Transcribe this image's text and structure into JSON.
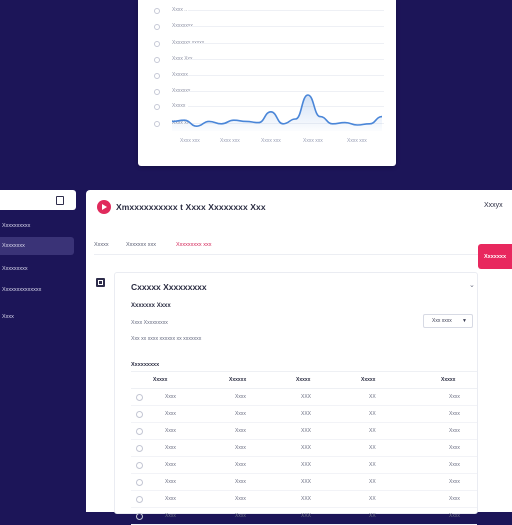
{
  "chart_card": {
    "y_labels": [
      "Xxxx ..",
      "Xxxxxxxx",
      "Xxxxxxx xxxxx",
      "Xxxx Xxx",
      "Xxxxxx",
      "Xxxxxxx",
      "Xxxxx",
      "Xxxx xx"
    ],
    "x_labels": [
      "Xxxx xxx",
      "Xxxx xxx",
      "Xxxx xxx",
      "Xxxx xxx",
      "Xxxx xxx"
    ]
  },
  "chart_data": {
    "type": "area",
    "values": [
      4,
      4.5,
      2,
      4,
      3,
      4.5,
      4,
      3.5,
      8,
      3,
      5,
      15,
      6,
      3,
      3.5,
      2.5,
      3,
      6
    ],
    "color": "#4a86d8"
  },
  "sidebar": {
    "items": [
      "Xxxxxxxxxx",
      "Xxxxxxxx",
      "Xxxxxxxxx",
      "Xxxxxxxxxxxxxx",
      "Xxxx"
    ]
  },
  "header": {
    "app_title": "Xmxxxxxxxxxx t Xxxx Xxxxxxxx Xxx",
    "user_name": "Xxxyx",
    "tabs": [
      "Xxxxx",
      "Xxxxxxx xxx",
      "Xxxxxxxxx xxx"
    ],
    "cta_label": "Xxxxxxx"
  },
  "card": {
    "title": "Cxxxxx Xxxxxxxxx",
    "collapse_icon": "chevron-down-icon",
    "subtitle": "Xxxxxxx Xxxx",
    "line1": "Xxxx Xxxxxxxxx",
    "line2": "Xxx xx xxxx xxxxxx xx xxxxxxx",
    "dropdown_value": "Xxx xxxx",
    "results_label": "Xxxxxxxxx",
    "columns": [
      "Xxxxx",
      "Xxxxxx",
      "Xxxxx",
      "Xxxxx",
      "Xxxxx"
    ],
    "rows": [
      [
        "Xxxx",
        "Xxxx",
        "XXX",
        "XX",
        "Xxxx"
      ],
      [
        "Xxxx",
        "Xxxx",
        "XXX",
        "XX",
        "Xxxx"
      ],
      [
        "Xxxx",
        "Xxxx",
        "XXX",
        "XX",
        "Xxxx"
      ],
      [
        "Xxxx",
        "Xxxx",
        "XXX",
        "XX",
        "Xxxx"
      ],
      [
        "Xxxx",
        "Xxxx",
        "XXX",
        "XX",
        "Xxxx"
      ],
      [
        "Xxxx",
        "Xxxx",
        "XXX",
        "XX",
        "Xxxx"
      ],
      [
        "Xxxx",
        "Xxxx",
        "XXX",
        "XX",
        "Xxxx"
      ],
      [
        "Xxxx",
        "Xxxx",
        "XXX",
        "XX",
        "Xxxx"
      ]
    ]
  },
  "colors": {
    "background": "#1c1558",
    "accent": "#e8285e",
    "chart_line": "#4a86d8"
  }
}
